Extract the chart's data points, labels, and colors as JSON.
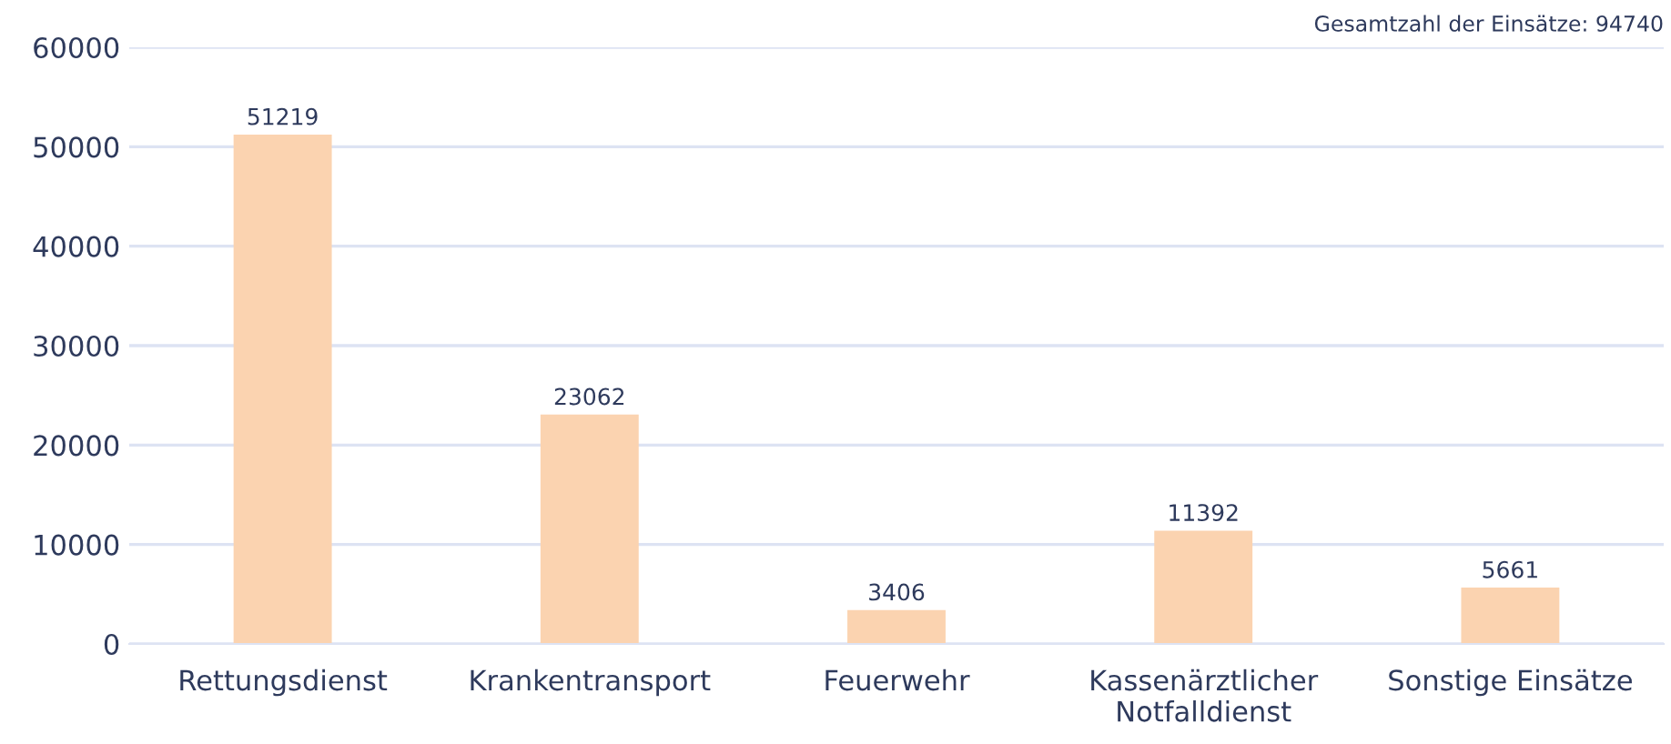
{
  "chart_data": {
    "type": "bar",
    "categories": [
      "Rettungsdienst",
      "Krankentransport",
      "Feuerwehr",
      "Kassenärztlicher\nNotfalldienst",
      "Sonstige Einsätze"
    ],
    "values": [
      51219,
      23062,
      3406,
      11392,
      5661
    ],
    "color": "#fbd3b0",
    "ylim": [
      0,
      60000
    ],
    "yticks": [
      0,
      10000,
      20000,
      30000,
      40000,
      50000,
      60000
    ],
    "grid": "y",
    "data_labels": true,
    "annotations": [
      "Gesamtzahl der Einsätze: 94740"
    ]
  }
}
